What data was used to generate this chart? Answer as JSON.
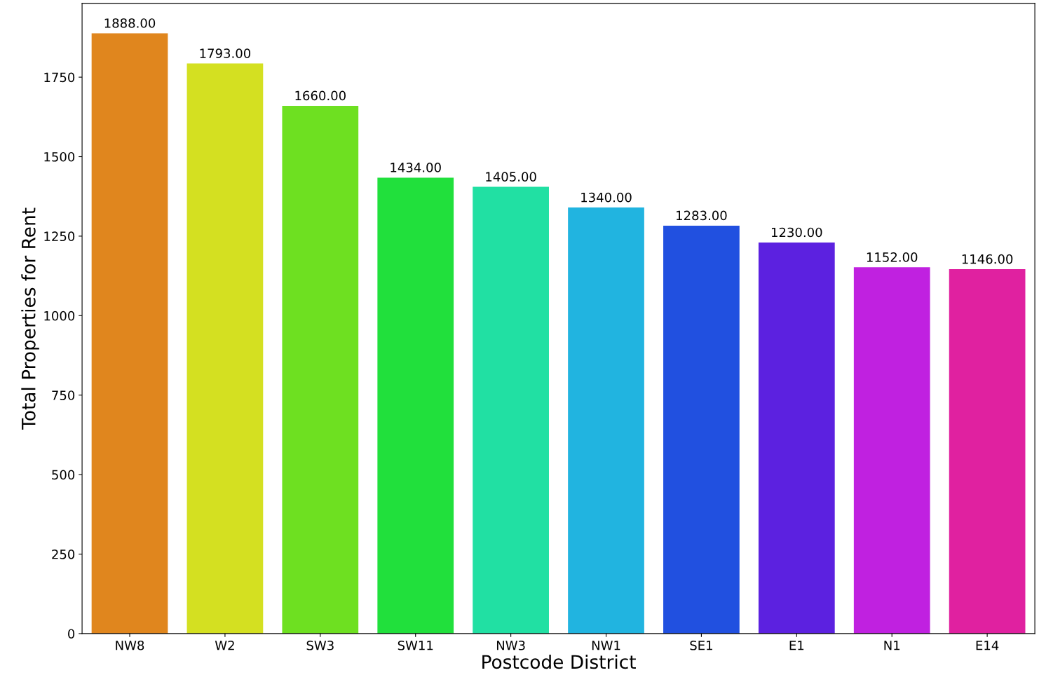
{
  "chart_data": {
    "type": "bar",
    "xlabel": "Postcode District",
    "ylabel": "Total Properties for Rent",
    "categories": [
      "NW8",
      "W2",
      "SW3",
      "SW11",
      "NW3",
      "NW1",
      "SE1",
      "E1",
      "N1",
      "E14"
    ],
    "values": [
      1888,
      1793,
      1660,
      1434,
      1405,
      1340,
      1283,
      1230,
      1152,
      1146
    ],
    "value_labels": [
      "1888.00",
      "1793.00",
      "1660.00",
      "1434.00",
      "1405.00",
      "1340.00",
      "1283.00",
      "1230.00",
      "1152.00",
      "1146.00"
    ],
    "colors": [
      "#e0861e",
      "#d4e021",
      "#6ee021",
      "#21e03c",
      "#21e0a3",
      "#21b4e0",
      "#2150e0",
      "#5c21e0",
      "#c021e0",
      "#e021a0"
    ],
    "ylim": [
      0,
      1982
    ],
    "yticks": [
      0,
      250,
      500,
      750,
      1000,
      1250,
      1500,
      1750
    ],
    "grid": false
  }
}
